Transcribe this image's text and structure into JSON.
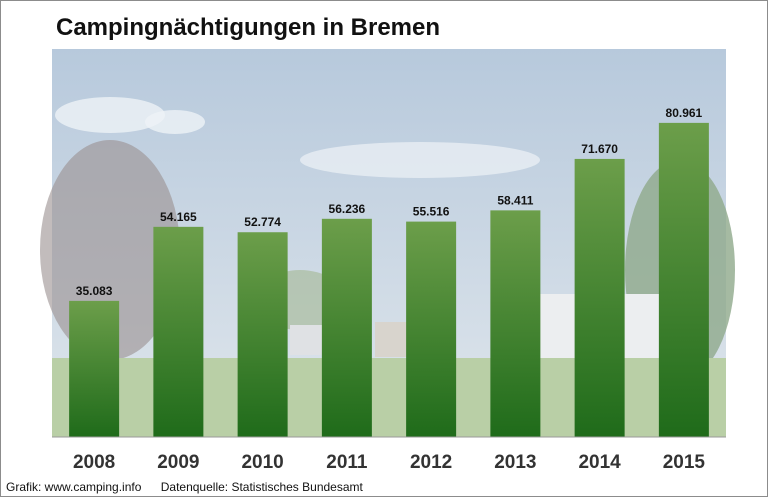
{
  "title": "Campingnächtigungen in Bremen",
  "footer": {
    "credit": "Grafik: www.camping.info",
    "source": "Datenquelle:  Statistisches Bundesamt"
  },
  "colors": {
    "bar_top": "#6c9e4a",
    "bar_bottom": "#1f6b1a",
    "sky_top": "#b7c9dc",
    "sky_bottom": "#dfe6ec",
    "grass": "#b9cfa6",
    "trees": "#8fa98b"
  },
  "chart_data": {
    "type": "bar",
    "title": "Campingnächtigungen in Bremen",
    "categories": [
      "2008",
      "2009",
      "2010",
      "2011",
      "2012",
      "2013",
      "2014",
      "2015"
    ],
    "values": [
      35083,
      54165,
      52774,
      56236,
      55516,
      58411,
      71670,
      80961
    ],
    "value_labels": [
      "35.083",
      "54.165",
      "52.774",
      "56.236",
      "55.516",
      "58.411",
      "71.670",
      "80.961"
    ],
    "xlabel": "",
    "ylabel": "",
    "ylim": [
      0,
      100000
    ],
    "grid": false,
    "legend": "none"
  }
}
